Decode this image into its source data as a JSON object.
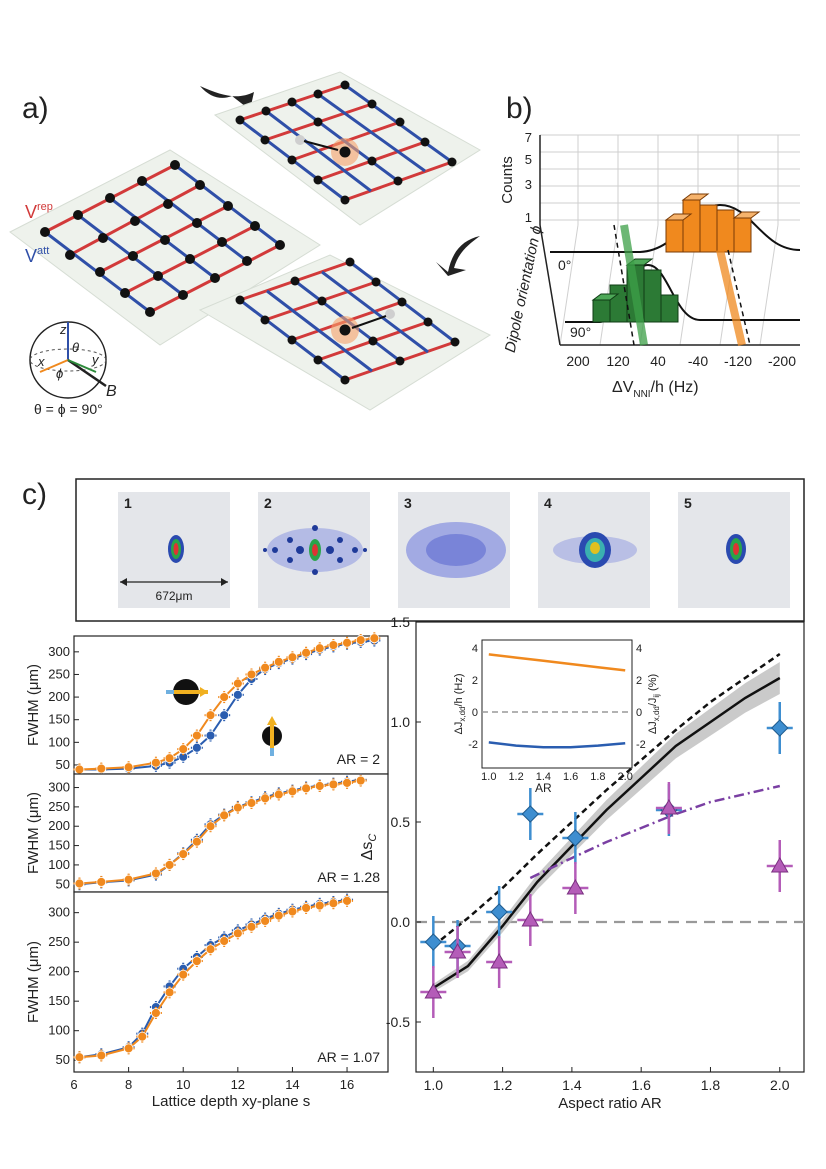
{
  "panels": {
    "a": "a)",
    "b": "b)",
    "c": "c)"
  },
  "lattice": {
    "v_rep": "V",
    "v_rep_sup": "rep",
    "v_att": "V",
    "v_att_sup": "att",
    "axis_z": "z",
    "axis_x": "x",
    "axis_y": "y",
    "theta": "θ",
    "phi": "ϕ",
    "field": "B",
    "angle_eq": "θ = ϕ = 90°"
  },
  "hist3d": {
    "counts_label": "Counts",
    "count_ticks": [
      "1",
      "3",
      "5",
      "7"
    ],
    "depth_axis_label": "Dipole orientation ϕ",
    "depth_ticks": [
      "0°",
      "90°"
    ],
    "x_ticks": [
      "200",
      "120",
      "40",
      "-40",
      "-120",
      "-200"
    ],
    "x_label": "ΔV",
    "x_label_sub": "NNI",
    "x_label_tail": "/h (Hz)"
  },
  "images": {
    "items": [
      "1",
      "2",
      "3",
      "4",
      "5"
    ],
    "scale_bar": "672μm"
  },
  "chart_data": [
    {
      "type": "scatter",
      "title": "",
      "annotation": "AR = 2",
      "ylabel": "FWHM (μm)",
      "xlabel": "",
      "xlim": [
        6,
        17.5
      ],
      "ylim": [
        30,
        335
      ],
      "yticks": [
        50,
        100,
        150,
        200,
        250,
        300
      ],
      "series": [
        {
          "color": "#2a5db0",
          "x": [
            6.2,
            7,
            8,
            9,
            9.5,
            10,
            10.5,
            11,
            11.5,
            12,
            12.5,
            13,
            13.5,
            14,
            14.5,
            15,
            15.5,
            16,
            16.5,
            17
          ],
          "values": [
            40,
            40,
            42,
            48,
            55,
            68,
            88,
            115,
            160,
            205,
            240,
            262,
            275,
            285,
            295,
            305,
            312,
            318,
            322,
            325
          ]
        },
        {
          "color": "#f0891e",
          "x": [
            6.2,
            7,
            8,
            9,
            9.5,
            10,
            10.5,
            11,
            11.5,
            12,
            12.5,
            13,
            13.5,
            14,
            14.5,
            15,
            15.5,
            16,
            16.5,
            17
          ],
          "values": [
            40,
            42,
            45,
            55,
            65,
            85,
            115,
            160,
            200,
            230,
            250,
            265,
            278,
            288,
            298,
            308,
            315,
            320,
            326,
            330
          ]
        }
      ]
    },
    {
      "type": "scatter",
      "title": "",
      "annotation": "AR = 1.28",
      "ylabel": "FWHM (μm)",
      "xlabel": "",
      "xlim": [
        6,
        17.5
      ],
      "ylim": [
        30,
        335
      ],
      "yticks": [
        50,
        100,
        150,
        200,
        250,
        300
      ],
      "series": [
        {
          "color": "#2a5db0",
          "x": [
            6.2,
            7,
            8,
            9,
            9.5,
            10,
            10.5,
            11,
            11.5,
            12,
            12.5,
            13,
            13.5,
            14,
            14.5,
            15,
            15.5,
            16,
            16.5
          ],
          "values": [
            50,
            55,
            60,
            75,
            100,
            130,
            165,
            205,
            230,
            250,
            262,
            275,
            285,
            292,
            300,
            305,
            310,
            315,
            320
          ]
        },
        {
          "color": "#f0891e",
          "x": [
            6.2,
            7,
            8,
            9,
            9.5,
            10,
            10.5,
            11,
            11.5,
            12,
            12.5,
            13,
            13.5,
            14,
            14.5,
            15,
            15.5,
            16,
            16.5
          ],
          "values": [
            52,
            56,
            62,
            78,
            100,
            128,
            160,
            200,
            228,
            248,
            260,
            272,
            282,
            290,
            298,
            304,
            308,
            312,
            318
          ]
        }
      ]
    },
    {
      "type": "scatter",
      "title": "",
      "annotation": "AR = 1.07",
      "ylabel": "FWHM (μm)",
      "xlabel": "Lattice depth xy-plane s",
      "xlim": [
        6,
        17.5
      ],
      "ylim": [
        30,
        335
      ],
      "yticks": [
        50,
        100,
        150,
        200,
        250,
        300
      ],
      "xticks": [
        6,
        8,
        10,
        12,
        14,
        16
      ],
      "series": [
        {
          "color": "#2a5db0",
          "x": [
            6.2,
            7,
            8,
            8.5,
            9,
            9.5,
            10,
            10.5,
            11,
            11.5,
            12,
            12.5,
            13,
            13.5,
            14,
            14.5,
            15,
            15.5,
            16
          ],
          "values": [
            55,
            60,
            72,
            95,
            140,
            175,
            205,
            225,
            245,
            258,
            270,
            280,
            290,
            298,
            305,
            310,
            315,
            318,
            322
          ]
        },
        {
          "color": "#f0891e",
          "x": [
            6.2,
            7,
            8,
            8.5,
            9,
            9.5,
            10,
            10.5,
            11,
            11.5,
            12,
            12.5,
            13,
            13.5,
            14,
            14.5,
            15,
            15.5,
            16
          ],
          "values": [
            55,
            58,
            70,
            90,
            130,
            165,
            195,
            218,
            238,
            252,
            265,
            276,
            286,
            295,
            302,
            308,
            312,
            316,
            320
          ]
        }
      ]
    },
    {
      "type": "scatter",
      "title": "",
      "xlabel": "Aspect ratio AR",
      "ylabel": "Δs",
      "ylabel_sub": "C",
      "xlim": [
        0.95,
        2.07
      ],
      "ylim": [
        -0.75,
        1.5
      ],
      "xticks": [
        1.0,
        1.2,
        1.4,
        1.6,
        1.8,
        2.0
      ],
      "yticks": [
        -0.5,
        0.0,
        0.5,
        1.0,
        1.5
      ],
      "series": [
        {
          "color": "#3e8ed0",
          "marker": "diamond",
          "x": [
            1.0,
            1.07,
            1.19,
            1.28,
            1.41,
            1.68,
            2.0
          ],
          "values": [
            -0.1,
            -0.12,
            0.05,
            0.54,
            0.42,
            0.56,
            0.97
          ]
        },
        {
          "color": "#b45cb8",
          "marker": "triangle",
          "x": [
            1.0,
            1.07,
            1.19,
            1.28,
            1.41,
            1.68,
            2.0
          ],
          "values": [
            -0.35,
            -0.15,
            -0.2,
            0.01,
            0.17,
            0.57,
            0.28
          ]
        }
      ],
      "lines": [
        {
          "style": "dashed",
          "color": "#111",
          "x": [
            1.0,
            1.1,
            1.2,
            1.3,
            1.4,
            1.5,
            1.6,
            1.7,
            1.8,
            1.9,
            2.0
          ],
          "values": [
            -0.12,
            0.02,
            0.17,
            0.34,
            0.5,
            0.66,
            0.81,
            0.96,
            1.1,
            1.22,
            1.34
          ]
        },
        {
          "style": "solid",
          "color": "#111",
          "x": [
            1.0,
            1.1,
            1.2,
            1.3,
            1.4,
            1.5,
            1.6,
            1.7,
            1.8,
            1.9,
            2.0
          ],
          "values": [
            -0.33,
            -0.22,
            -0.02,
            0.2,
            0.38,
            0.56,
            0.72,
            0.88,
            1.0,
            1.12,
            1.22
          ]
        },
        {
          "style": "dashdot",
          "color": "#7a3fa3",
          "x": [
            1.28,
            1.4,
            1.5,
            1.6,
            1.7,
            1.8,
            1.9,
            2.0
          ],
          "values": [
            0.22,
            0.32,
            0.4,
            0.47,
            0.54,
            0.6,
            0.64,
            0.68
          ]
        }
      ],
      "inset": {
        "xlabel": "AR",
        "ylabel_left": "ΔJ",
        "ylabel_left_sub": "x,dd",
        "ylabel_left_tail": "/h (Hz)",
        "ylabel_right": "ΔJ",
        "ylabel_right_sub": "x,dd",
        "ylabel_right_tail": "/J",
        "ylabel_right_sub2": "ij",
        "ylabel_right_unit": " (%)",
        "xticks": [
          "1.0",
          "1.2",
          "1.4",
          "1.6",
          "1.8",
          "2.0"
        ],
        "yticks_left": [
          "4",
          "2",
          "0",
          "-2"
        ],
        "yticks_right": [
          "4",
          "2",
          "0",
          "-2"
        ],
        "series": [
          {
            "color": "#f0891e",
            "x": [
              1.0,
              1.2,
              1.4,
              1.6,
              1.8,
              2.0
            ],
            "values": [
              3.6,
              3.4,
              3.2,
              3.0,
              2.8,
              2.6
            ]
          },
          {
            "color": "#2a5db0",
            "x": [
              1.0,
              1.2,
              1.4,
              1.6,
              1.8,
              2.0
            ],
            "values": [
              -1.9,
              -2.1,
              -2.2,
              -2.2,
              -2.1,
              -1.95
            ]
          }
        ]
      }
    }
  ]
}
